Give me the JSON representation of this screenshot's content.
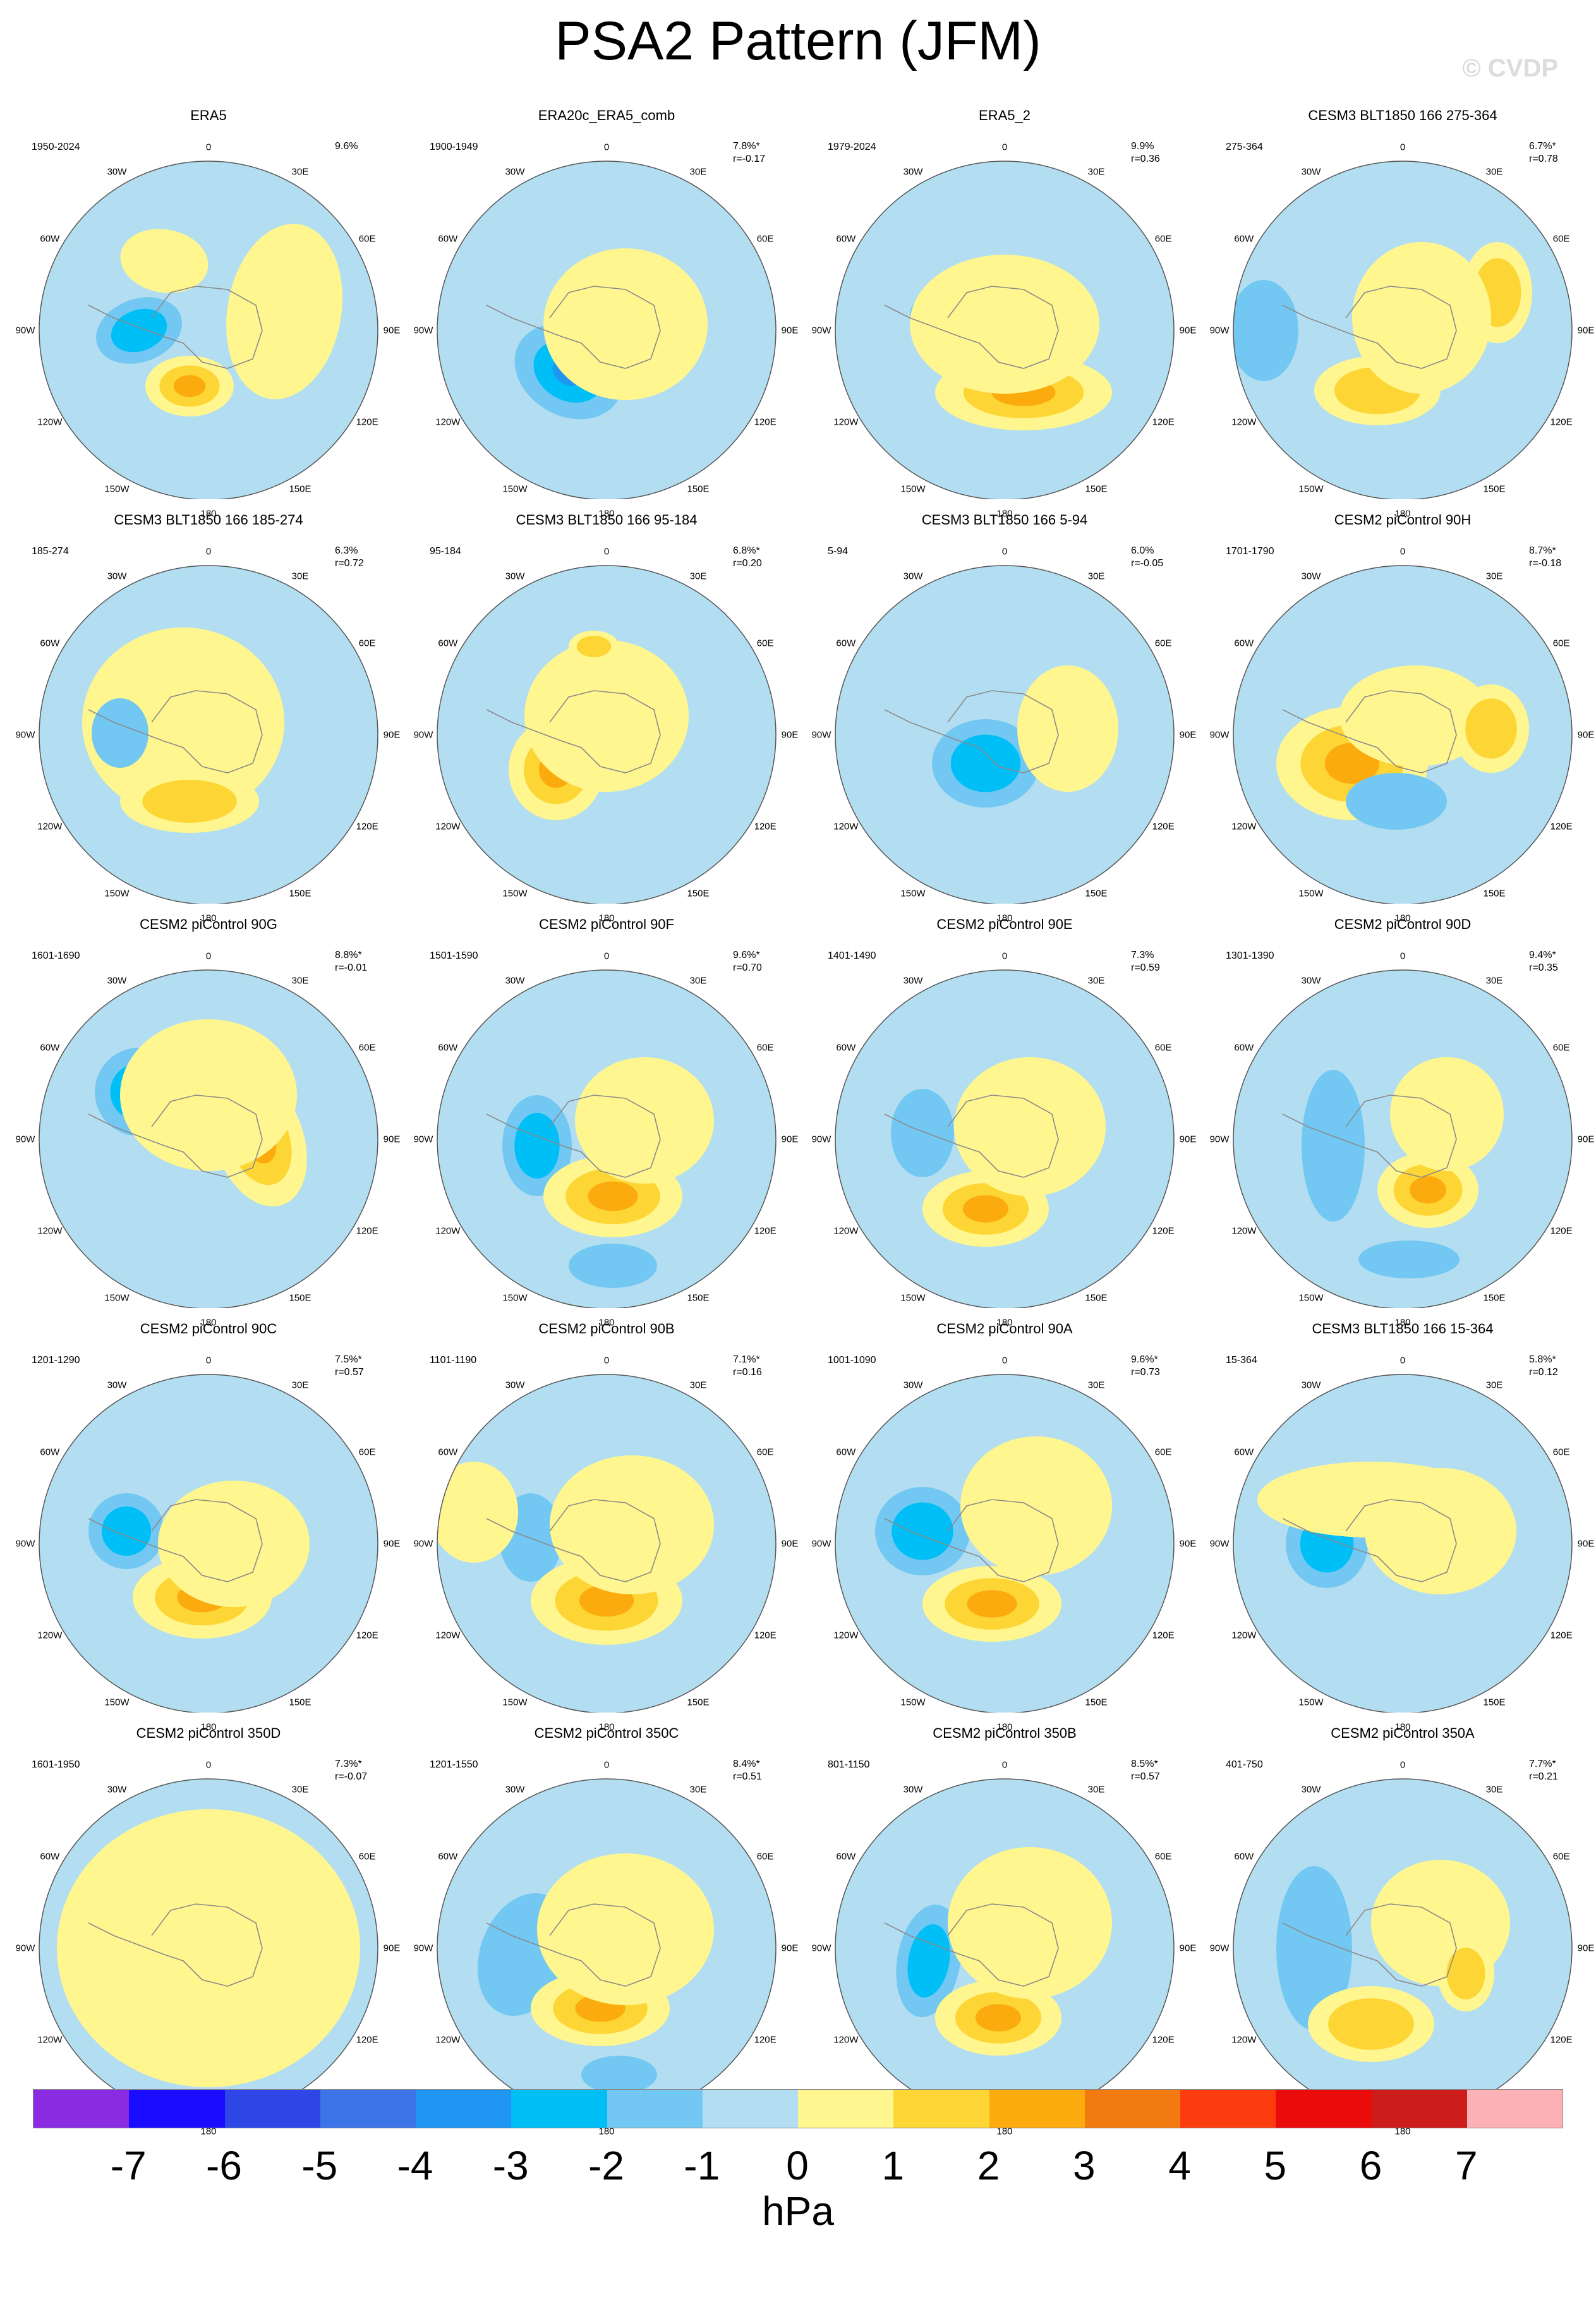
{
  "title": "PSA2 Pattern (JFM)",
  "credit": "© CVDP",
  "lon_labels": [
    "0",
    "30E",
    "60E",
    "90E",
    "120E",
    "150E",
    "180",
    "150W",
    "120W",
    "90W",
    "60W",
    "30W"
  ],
  "colors": {
    "n7": "#8a2be2",
    "n6": "#1a0dff",
    "n5": "#2f46e6",
    "n4": "#3d74e8",
    "n3": "#1f96f2",
    "n2": "#00bff6",
    "n1": "#72c8f2",
    "n0": "#b3def1",
    "p0": "#fff68f",
    "p1": "#fdd535",
    "p2": "#fbab0d",
    "p3": "#f27a10",
    "p4": "#fb3c0f",
    "p5": "#ea0b0b",
    "p6": "#cc1c1c",
    "p7": "#fbb1b5",
    "land": "#8a8a8a"
  },
  "panels": [
    {
      "title": "ERA5",
      "period": "1950-2024",
      "stats": [
        "9.6%"
      ]
    },
    {
      "title": "ERA20c_ERA5_comb",
      "period": "1900-1949",
      "stats": [
        "7.8%*",
        "r=-0.17"
      ]
    },
    {
      "title": "ERA5_2",
      "period": "1979-2024",
      "stats": [
        "9.9%",
        "r=0.36"
      ]
    },
    {
      "title": "CESM3 BLT1850 166 275-364",
      "period": "275-364",
      "stats": [
        "6.7%*",
        "r=0.78"
      ]
    },
    {
      "title": "CESM3 BLT1850 166 185-274",
      "period": "185-274",
      "stats": [
        "6.3%",
        "r=0.72"
      ]
    },
    {
      "title": "CESM3 BLT1850 166 95-184",
      "period": "95-184",
      "stats": [
        "6.8%*",
        "r=0.20"
      ]
    },
    {
      "title": "CESM3 BLT1850 166 5-94",
      "period": "5-94",
      "stats": [
        "6.0%",
        "r=-0.05"
      ]
    },
    {
      "title": "CESM2 piControl 90H",
      "period": "1701-1790",
      "stats": [
        "8.7%*",
        "r=-0.18"
      ]
    },
    {
      "title": "CESM2 piControl 90G",
      "period": "1601-1690",
      "stats": [
        "8.8%*",
        "r=-0.01"
      ]
    },
    {
      "title": "CESM2 piControl 90F",
      "period": "1501-1590",
      "stats": [
        "9.6%*",
        "r=0.70"
      ]
    },
    {
      "title": "CESM2 piControl 90E",
      "period": "1401-1490",
      "stats": [
        "7.3%",
        "r=0.59"
      ]
    },
    {
      "title": "CESM2 piControl 90D",
      "period": "1301-1390",
      "stats": [
        "9.4%*",
        "r=0.35"
      ]
    },
    {
      "title": "CESM2 piControl 90C",
      "period": "1201-1290",
      "stats": [
        "7.5%*",
        "r=0.57"
      ]
    },
    {
      "title": "CESM2 piControl 90B",
      "period": "1101-1190",
      "stats": [
        "7.1%*",
        "r=0.16"
      ]
    },
    {
      "title": "CESM2 piControl 90A",
      "period": "1001-1090",
      "stats": [
        "9.6%*",
        "r=0.73"
      ]
    },
    {
      "title": "CESM3 BLT1850 166 15-364",
      "period": "15-364",
      "stats": [
        "5.8%*",
        "r=0.12"
      ]
    },
    {
      "title": "CESM2 piControl 350D",
      "period": "1601-1950",
      "stats": [
        "7.3%*",
        "r=-0.07"
      ]
    },
    {
      "title": "CESM2 piControl 350C",
      "period": "1201-1550",
      "stats": [
        "8.4%*",
        "r=0.51"
      ]
    },
    {
      "title": "CESM2 piControl 350B",
      "period": "801-1150",
      "stats": [
        "8.5%*",
        "r=0.57"
      ]
    },
    {
      "title": "CESM2 piControl 350A",
      "period": "401-750",
      "stats": [
        "7.7%*",
        "r=0.21"
      ]
    }
  ],
  "colorbar": {
    "colors": [
      "#8a2be2",
      "#1a0dff",
      "#2f46e6",
      "#3d74e8",
      "#1f96f2",
      "#00bff6",
      "#72c8f2",
      "#b3def1",
      "#fff68f",
      "#fdd535",
      "#fbab0d",
      "#f27a10",
      "#fb3c0f",
      "#ea0b0b",
      "#cc1c1c",
      "#fbb1b5"
    ],
    "ticks": [
      "-7",
      "-6",
      "-5",
      "-4",
      "-3",
      "-2",
      "-1",
      "0",
      "1",
      "2",
      "3",
      "4",
      "5",
      "6",
      "7"
    ],
    "unit": "hPa"
  }
}
